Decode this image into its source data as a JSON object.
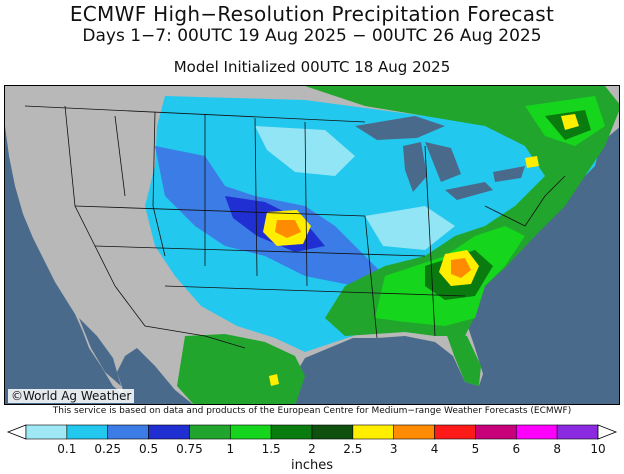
{
  "title": "ECMWF High−Resolution Precipitation Forecast",
  "subtitle": "Days 1−7: 00UTC 19 Aug 2025 − 00UTC 26 Aug 2025",
  "model_init": "Model Initialized 00UTC 18 Aug 2025",
  "credit": "©World Ag Weather",
  "disclaimer": "This service is based on data and products of the European Centre for Medium−range Weather Forecasts (ECMWF)",
  "legend": {
    "unit": "inches",
    "labels": [
      "0.1",
      "0.25",
      "0.5",
      "0.75",
      "1",
      "1.5",
      "2",
      "2.5",
      "3",
      "4",
      "5",
      "6",
      "8",
      "10"
    ],
    "colors": [
      "#9fe8f5",
      "#22c8ee",
      "#3c7ce6",
      "#1f2fd2",
      "#22a52c",
      "#15d61c",
      "#0a7c0f",
      "#10500e",
      "#ffee00",
      "#ff8c00",
      "#ff1a1a",
      "#c8007a",
      "#ff00ff",
      "#8a2be2"
    ],
    "low_color": "#ffffff",
    "high_color": "#ffffff"
  }
}
